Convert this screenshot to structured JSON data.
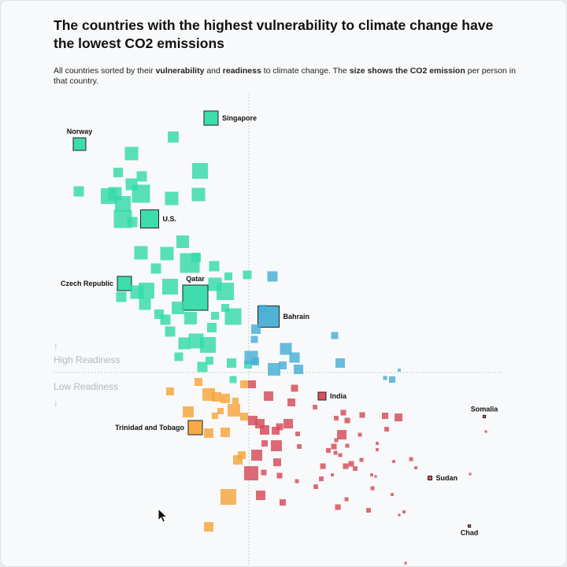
{
  "header": {
    "title": "The countries with the highest vulnerability to climate change have the lowest CO2 emissions",
    "subtitle_parts": [
      {
        "text": "All countries sorted by their ",
        "bold": false
      },
      {
        "text": "vulnerability",
        "bold": true
      },
      {
        "text": " and ",
        "bold": false
      },
      {
        "text": "readiness",
        "bold": true
      },
      {
        "text": " to climate change. The ",
        "bold": false
      },
      {
        "text": "size shows the CO2 emission",
        "bold": true
      },
      {
        "text": " per person in that country.",
        "bold": false
      }
    ]
  },
  "chart_data": {
    "type": "scatter",
    "marker": "square",
    "xlabel": "",
    "ylabel": "",
    "x_field": "vulnerability",
    "y_field": "readiness",
    "size_field": "co2_per_person",
    "xlim": [
      0.2,
      0.768
    ],
    "ylim": [
      0.27,
      0.87
    ],
    "x_split": 0.448,
    "y_split": 0.508,
    "grid": false,
    "legend": "none",
    "annotations": {
      "high_readiness": "High Readiness",
      "low_readiness": "Low Readiness",
      "up_arrow": "↑",
      "down_arrow": "↓"
    },
    "colors": {
      "high_readiness_low_vulnerability": "#33dba9",
      "high_readiness_high_vulnerability": "#47afd4",
      "low_readiness_low_vulnerability": "#f7a53c",
      "low_readiness_high_vulnerability": "#d64a58"
    },
    "points": [
      [
        0.4,
        0.841,
        13.0,
        "Singapore",
        "right"
      ],
      [
        0.233,
        0.808,
        10.2,
        "Norway",
        "top"
      ],
      [
        0.352,
        0.817,
        7.8
      ],
      [
        0.299,
        0.796,
        11.6
      ],
      [
        0.386,
        0.774,
        16.0
      ],
      [
        0.282,
        0.772,
        5.8
      ],
      [
        0.312,
        0.767,
        6.8
      ],
      [
        0.232,
        0.748,
        6.8
      ],
      [
        0.299,
        0.757,
        9.0
      ],
      [
        0.311,
        0.745,
        21.2
      ],
      [
        0.35,
        0.739,
        11.6
      ],
      [
        0.384,
        0.744,
        11.6
      ],
      [
        0.27,
        0.742,
        16.0
      ],
      [
        0.278,
        0.745,
        11.6
      ],
      [
        0.288,
        0.732,
        16.0
      ],
      [
        0.288,
        0.713,
        21.2
      ],
      [
        0.3,
        0.709,
        6.8
      ],
      [
        0.322,
        0.713,
        21.2,
        "U.S.",
        "right"
      ],
      [
        0.364,
        0.684,
        10.2
      ],
      [
        0.311,
        0.67,
        11.6
      ],
      [
        0.344,
        0.669,
        11.6
      ],
      [
        0.373,
        0.657,
        25.0
      ],
      [
        0.381,
        0.664,
        5.8
      ],
      [
        0.404,
        0.653,
        6.8
      ],
      [
        0.33,
        0.65,
        6.8
      ],
      [
        0.422,
        0.64,
        4.0
      ],
      [
        0.446,
        0.642,
        4.8
      ],
      [
        0.29,
        0.631,
        13.0,
        "Czech Republic",
        "left"
      ],
      [
        0.286,
        0.614,
        6.8
      ],
      [
        0.306,
        0.62,
        11.6
      ],
      [
        0.318,
        0.622,
        16.0
      ],
      [
        0.348,
        0.627,
        16.0
      ],
      [
        0.38,
        0.613,
        41.0,
        "Qatar",
        "top"
      ],
      [
        0.405,
        0.63,
        11.6
      ],
      [
        0.418,
        0.621,
        19.4
      ],
      [
        0.316,
        0.605,
        9.0
      ],
      [
        0.334,
        0.592,
        5.8
      ],
      [
        0.342,
        0.585,
        6.8
      ],
      [
        0.358,
        0.6,
        10.2
      ],
      [
        0.374,
        0.587,
        10.2
      ],
      [
        0.405,
        0.59,
        4.0
      ],
      [
        0.428,
        0.589,
        17.6
      ],
      [
        0.418,
        0.6,
        4.0
      ],
      [
        0.348,
        0.57,
        6.8
      ],
      [
        0.366,
        0.555,
        9.0
      ],
      [
        0.381,
        0.558,
        14.4
      ],
      [
        0.396,
        0.553,
        16.0
      ],
      [
        0.401,
        0.575,
        5.8
      ],
      [
        0.359,
        0.538,
        4.8
      ],
      [
        0.398,
        0.533,
        4.0
      ],
      [
        0.389,
        0.525,
        6.8
      ],
      [
        0.426,
        0.53,
        5.8
      ],
      [
        0.428,
        0.509,
        3.2
      ],
      [
        0.447,
        0.528,
        4.0
      ],
      [
        0.478,
        0.64,
        6.8
      ],
      [
        0.473,
        0.589,
        29.2,
        "Bahrain",
        "right"
      ],
      [
        0.466,
        0.599,
        4.0
      ],
      [
        0.457,
        0.573,
        5.8
      ],
      [
        0.455,
        0.56,
        3.2
      ],
      [
        0.495,
        0.548,
        9.0
      ],
      [
        0.506,
        0.537,
        6.8
      ],
      [
        0.48,
        0.522,
        10.2
      ],
      [
        0.491,
        0.527,
        4.0
      ],
      [
        0.511,
        0.522,
        5.8
      ],
      [
        0.451,
        0.537,
        11.6
      ],
      [
        0.456,
        0.532,
        4.0
      ],
      [
        0.557,
        0.565,
        3.2
      ],
      [
        0.564,
        0.53,
        5.8
      ],
      [
        0.639,
        0.521,
        0.6
      ],
      [
        0.621,
        0.511,
        1.0
      ],
      [
        0.63,
        0.509,
        2.6
      ],
      [
        0.384,
        0.506,
        4.0
      ],
      [
        0.442,
        0.503,
        4.0
      ],
      [
        0.348,
        0.494,
        4.0
      ],
      [
        0.397,
        0.49,
        10.2
      ],
      [
        0.407,
        0.487,
        5.8
      ],
      [
        0.418,
        0.485,
        5.8
      ],
      [
        0.431,
        0.482,
        2.6
      ],
      [
        0.429,
        0.47,
        10.2
      ],
      [
        0.371,
        0.468,
        7.8
      ],
      [
        0.412,
        0.469,
        2.6
      ],
      [
        0.405,
        0.463,
        2.6
      ],
      [
        0.442,
        0.462,
        4.0
      ],
      [
        0.38,
        0.448,
        13.0,
        "Trinidad and Tobago",
        "left"
      ],
      [
        0.397,
        0.441,
        5.8
      ],
      [
        0.418,
        0.442,
        5.8
      ],
      [
        0.439,
        0.413,
        4.0
      ],
      [
        0.434,
        0.407,
        5.8
      ],
      [
        0.422,
        0.36,
        16.0
      ],
      [
        0.397,
        0.322,
        5.8
      ],
      [
        0.452,
        0.503,
        4.0
      ],
      [
        0.506,
        0.498,
        3.2
      ],
      [
        0.541,
        0.488,
        4.0,
        "India",
        "right"
      ],
      [
        0.473,
        0.488,
        5.8
      ],
      [
        0.502,
        0.48,
        4.0
      ],
      [
        0.532,
        0.474,
        1.4
      ],
      [
        0.568,
        0.467,
        2.0
      ],
      [
        0.559,
        0.46,
        1.4
      ],
      [
        0.573,
        0.457,
        2.0
      ],
      [
        0.592,
        0.464,
        2.0
      ],
      [
        0.621,
        0.463,
        2.6
      ],
      [
        0.638,
        0.461,
        4.0
      ],
      [
        0.747,
        0.462,
        0.4,
        "Somalia",
        "top"
      ],
      [
        0.749,
        0.443,
        0.4
      ],
      [
        0.453,
        0.457,
        5.8
      ],
      [
        0.462,
        0.453,
        5.8
      ],
      [
        0.468,
        0.445,
        5.8
      ],
      [
        0.482,
        0.444,
        4.0
      ],
      [
        0.487,
        0.449,
        3.2
      ],
      [
        0.498,
        0.453,
        5.8
      ],
      [
        0.51,
        0.44,
        1.4
      ],
      [
        0.566,
        0.439,
        5.8
      ],
      [
        0.589,
        0.439,
        1.0
      ],
      [
        0.623,
        0.446,
        1.4
      ],
      [
        0.468,
        0.428,
        2.6
      ],
      [
        0.483,
        0.425,
        7.8
      ],
      [
        0.512,
        0.424,
        1.4
      ],
      [
        0.559,
        0.432,
        1.0
      ],
      [
        0.556,
        0.424,
        2.0
      ],
      [
        0.573,
        0.425,
        1.0
      ],
      [
        0.549,
        0.419,
        1.4
      ],
      [
        0.558,
        0.416,
        1.0
      ],
      [
        0.564,
        0.413,
        1.0
      ],
      [
        0.611,
        0.428,
        0.6
      ],
      [
        0.611,
        0.42,
        0.6
      ],
      [
        0.458,
        0.413,
        7.8
      ],
      [
        0.484,
        0.404,
        4.0
      ],
      [
        0.542,
        0.399,
        2.0
      ],
      [
        0.571,
        0.399,
        2.0
      ],
      [
        0.578,
        0.402,
        2.0
      ],
      [
        0.583,
        0.396,
        1.4
      ],
      [
        0.591,
        0.407,
        1.0
      ],
      [
        0.632,
        0.405,
        0.6
      ],
      [
        0.654,
        0.408,
        1.0
      ],
      [
        0.66,
        0.397,
        0.6
      ],
      [
        0.451,
        0.39,
        13.0
      ],
      [
        0.467,
        0.391,
        2.0
      ],
      [
        0.487,
        0.387,
        2.0
      ],
      [
        0.509,
        0.38,
        1.0
      ],
      [
        0.54,
        0.383,
        1.4
      ],
      [
        0.554,
        0.388,
        0.6
      ],
      [
        0.604,
        0.388,
        0.6
      ],
      [
        0.609,
        0.386,
        0.4
      ],
      [
        0.678,
        0.384,
        1.0,
        "Sudan",
        "right"
      ],
      [
        0.729,
        0.389,
        0.4
      ],
      [
        0.533,
        0.373,
        1.4
      ],
      [
        0.605,
        0.371,
        1.0
      ],
      [
        0.63,
        0.363,
        0.6
      ],
      [
        0.463,
        0.362,
        5.8
      ],
      [
        0.491,
        0.353,
        2.6
      ],
      [
        0.572,
        0.357,
        1.0
      ],
      [
        0.561,
        0.347,
        2.0
      ],
      [
        0.6,
        0.343,
        1.4
      ],
      [
        0.645,
        0.341,
        0.6
      ],
      [
        0.639,
        0.337,
        0.4
      ],
      [
        0.728,
        0.323,
        0.4,
        "Chad",
        "bottom"
      ],
      [
        0.647,
        0.276,
        0.4
      ]
    ]
  },
  "cursor": {
    "icon": "mouse-pointer-icon"
  }
}
